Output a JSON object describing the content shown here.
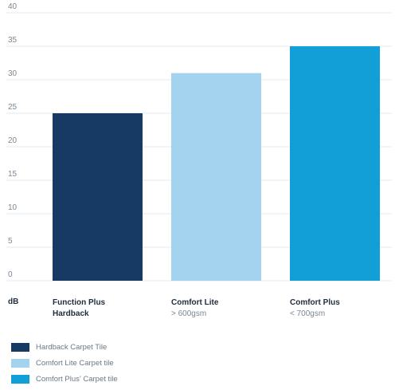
{
  "chart_data": {
    "type": "bar",
    "ylabel": "dB",
    "ylim": [
      0,
      40
    ],
    "yticks": [
      "0",
      "5",
      "10",
      "15",
      "20",
      "25",
      "30",
      "35",
      "40"
    ],
    "categories": [
      {
        "line1": "Function Plus",
        "line2": "Hardback"
      },
      {
        "line1": "Comfort Lite",
        "line2": "> 600gsm"
      },
      {
        "line1": "Comfort Plus",
        "line2": "< 700gsm"
      }
    ],
    "values": [
      25,
      31,
      35
    ],
    "colors": [
      "#163a63",
      "#a3d3ee",
      "#129fd7"
    ],
    "legend": [
      {
        "label": "Hardback Carpet Tile",
        "color": "#163a63"
      },
      {
        "label": "Comfort Lite Carpet tile",
        "color": "#a3d3ee"
      },
      {
        "label": "Comfort Plus' Carpet tile",
        "color": "#129fd7"
      }
    ]
  }
}
